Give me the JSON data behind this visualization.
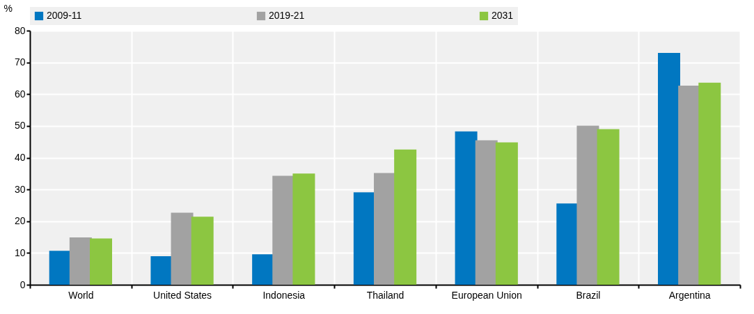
{
  "chart_data": {
    "type": "bar",
    "ylabel": "%",
    "categories": [
      "World",
      "United States",
      "Indonesia",
      "Thailand",
      "European Union",
      "Brazil",
      "Argentina"
    ],
    "series": [
      {
        "name": "2009-11",
        "color": "#0177c1",
        "values": [
          10.7,
          9.0,
          9.6,
          29.1,
          48.3,
          25.6,
          73.0
        ]
      },
      {
        "name": "2019-21",
        "color": "#a2a2a2",
        "values": [
          14.9,
          22.7,
          34.3,
          35.2,
          45.5,
          50.1,
          62.7
        ]
      },
      {
        "name": "2031",
        "color": "#8cc641",
        "values": [
          14.6,
          21.4,
          35.0,
          42.6,
          44.8,
          49.0,
          63.6
        ]
      }
    ],
    "ylim": [
      0,
      80
    ],
    "yticks": [
      0,
      10,
      20,
      30,
      40,
      50,
      60,
      70,
      80
    ],
    "grid": true,
    "legend": "top"
  }
}
